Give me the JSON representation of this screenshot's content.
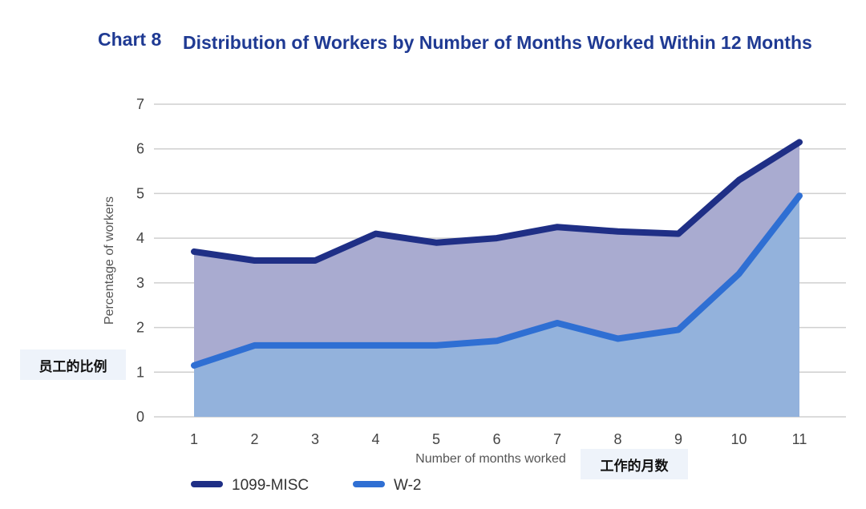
{
  "chart_number": "Chart 8",
  "title": "Distribution of Workers by Number of Months Worked Within 12 Months",
  "annotations": {
    "y_overlay": "员工的比例",
    "x_overlay": "工作的月数"
  },
  "colors": {
    "title": "#1f3a93",
    "misc_line": "#1f2f86",
    "misc_fill": "#a9abd0",
    "w2_line": "#2f6fd3",
    "w2_fill": "#93b2dc",
    "grid": "#cfcfcf"
  },
  "chart_data": {
    "type": "area",
    "title": "Distribution of Workers by Number of Months Worked Within 12 Months",
    "xlabel": "Number of months worked",
    "ylabel": "Percentage of workers",
    "x": [
      1,
      2,
      3,
      4,
      5,
      6,
      7,
      8,
      9,
      10,
      11
    ],
    "ylim": [
      0,
      7
    ],
    "yticks": [
      0,
      1,
      2,
      3,
      4,
      5,
      6,
      7
    ],
    "grid": true,
    "legend_position": "bottom-left",
    "series": [
      {
        "name": "1099-MISC",
        "values": [
          3.7,
          3.5,
          3.5,
          4.1,
          3.9,
          4.0,
          4.25,
          4.15,
          4.1,
          5.3,
          6.15
        ]
      },
      {
        "name": "W-2",
        "values": [
          1.15,
          1.6,
          1.6,
          1.6,
          1.6,
          1.7,
          2.1,
          1.75,
          1.95,
          3.2,
          4.95
        ]
      }
    ]
  }
}
